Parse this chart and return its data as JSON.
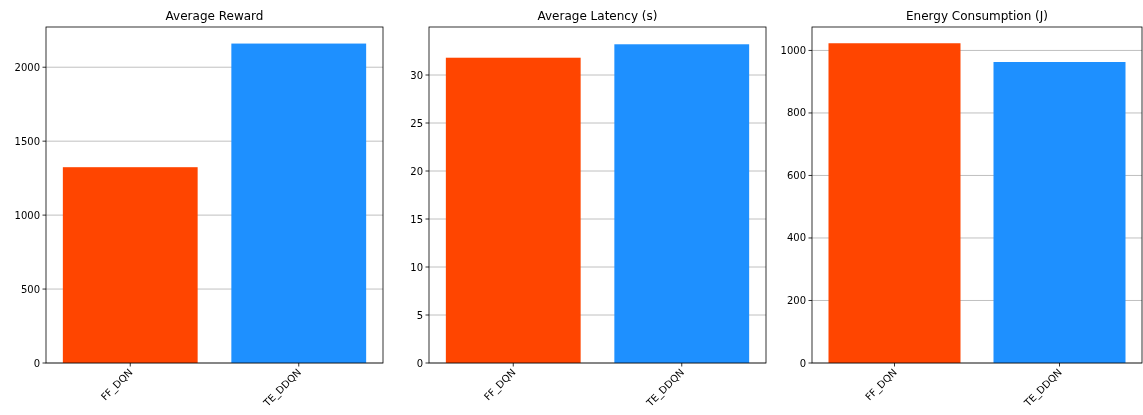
{
  "chart_data": [
    {
      "type": "bar",
      "title": "Average Reward",
      "categories": [
        "FF_DQN",
        "TE_DDQN"
      ],
      "values": [
        1324,
        2160
      ],
      "colors": [
        "#ff4500",
        "#1e90ff"
      ],
      "ylim": [
        0,
        2272
      ],
      "yticks": [
        0,
        500,
        1000,
        1500,
        2000
      ],
      "grid": "y"
    },
    {
      "type": "bar",
      "title": "Average Latency (s)",
      "categories": [
        "FF_DQN",
        "TE_DDQN"
      ],
      "values": [
        31.8,
        33.2
      ],
      "colors": [
        "#ff4500",
        "#1e90ff"
      ],
      "ylim": [
        0,
        35
      ],
      "yticks": [
        0,
        5,
        10,
        15,
        20,
        25,
        30
      ],
      "grid": "y"
    },
    {
      "type": "bar",
      "title": "Energy Consumption (J)",
      "categories": [
        "FF_DQN",
        "TE_DDQN"
      ],
      "values": [
        1023,
        963
      ],
      "colors": [
        "#ff4500",
        "#1e90ff"
      ],
      "ylim": [
        0,
        1075
      ],
      "yticks": [
        0,
        200,
        400,
        600,
        800,
        1000
      ],
      "grid": "y"
    }
  ]
}
